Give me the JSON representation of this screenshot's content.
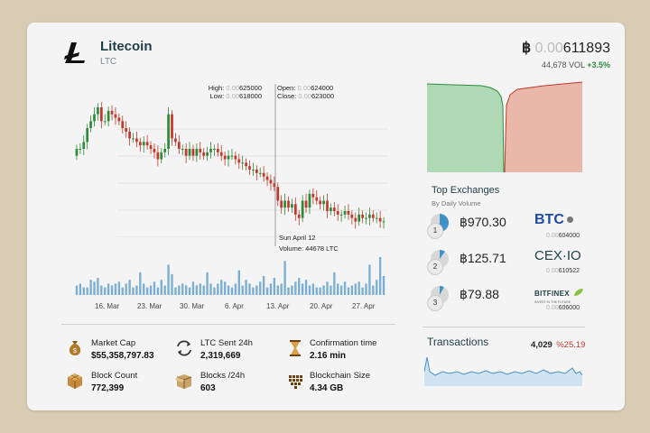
{
  "coin": {
    "name": "Litecoin",
    "symbol": "LTC"
  },
  "price": {
    "currency_symbol": "฿",
    "prefix": " 0.00",
    "value": "611893",
    "volume_label": "44,678 VOL",
    "change": "+3.5%"
  },
  "ohlc": {
    "high_label": "High:",
    "high_prefix": "0.00",
    "high_value": "625000",
    "low_label": "Low:",
    "low_prefix": "0.00",
    "low_value": "618000",
    "open_label": "Open:",
    "open_prefix": "0.00",
    "open_value": "624000",
    "close_label": "Close:",
    "close_prefix": "0.00",
    "close_value": "623000"
  },
  "hover": {
    "date": "Sun April 12",
    "volume": "Volume: 44678 LTC"
  },
  "chart_data": {
    "type": "candlestick",
    "x_labels": [
      "16. Mar",
      "23. Mar",
      "30. Mar",
      "6. Apr",
      "13. Apr",
      "20. Apr",
      "27. Apr"
    ],
    "closes": [
      0.63,
      0.63,
      0.632,
      0.636,
      0.638,
      0.64,
      0.642,
      0.638,
      0.638,
      0.641,
      0.64,
      0.639,
      0.638,
      0.636,
      0.635,
      0.633,
      0.633,
      0.632,
      0.631,
      0.632,
      0.631,
      0.63,
      0.629,
      0.627,
      0.629,
      0.63,
      0.64,
      0.633,
      0.632,
      0.63,
      0.63,
      0.628,
      0.63,
      0.628,
      0.63,
      0.629,
      0.628,
      0.629,
      0.63,
      0.63,
      0.629,
      0.628,
      0.627,
      0.628,
      0.628,
      0.627,
      0.626,
      0.626,
      0.625,
      0.624,
      0.624,
      0.623,
      0.623,
      0.622,
      0.621,
      0.62,
      0.619,
      0.615,
      0.613,
      0.615,
      0.613,
      0.614,
      0.611,
      0.61,
      0.615,
      0.613,
      0.617,
      0.616,
      0.615,
      0.614,
      0.615,
      0.612,
      0.613,
      0.612,
      0.611,
      0.611,
      0.612,
      0.611,
      0.61,
      0.609,
      0.611,
      0.61,
      0.61,
      0.611,
      0.61,
      0.61,
      0.609,
      0.609
    ],
    "volumes": [
      5,
      6,
      4,
      4,
      8,
      7,
      9,
      5,
      4,
      6,
      5,
      6,
      7,
      4,
      6,
      8,
      4,
      5,
      12,
      6,
      4,
      5,
      7,
      4,
      8,
      5,
      16,
      11,
      4,
      5,
      6,
      5,
      4,
      7,
      5,
      6,
      5,
      12,
      6,
      4,
      6,
      8,
      7,
      5,
      4,
      6,
      13,
      5,
      8,
      6,
      4,
      5,
      7,
      10,
      4,
      6,
      9,
      5,
      6,
      18,
      4,
      5,
      7,
      9,
      6,
      8,
      5,
      6,
      4,
      4,
      5,
      7,
      5,
      12,
      6,
      5,
      7,
      4,
      5,
      6,
      7,
      4,
      6,
      16,
      5,
      8,
      20,
      10
    ]
  },
  "stats": [
    {
      "label": "Market Cap",
      "value": "$55,358,797.83",
      "icon": "money-bag-icon"
    },
    {
      "label": "LTC Sent 24h",
      "value": "2,319,669",
      "icon": "exchange-arrows-icon"
    },
    {
      "label": "Confirmation time",
      "value": "2.16 min",
      "icon": "hourglass-icon"
    },
    {
      "label": "Block Count",
      "value": "772,399",
      "icon": "blocks-icon"
    },
    {
      "label": "Blocks /24h",
      "value": "603",
      "icon": "box-icon"
    },
    {
      "label": "Blockchain Size",
      "value": "4.34 GB",
      "icon": "heart-blocks-icon"
    }
  ],
  "exchanges": {
    "title": "Top Exchanges",
    "subtitle": "By Daily Volume",
    "items": [
      {
        "rank": "1",
        "value": "฿970.30",
        "logo": "BTC",
        "small_prefix": "0.00",
        "small_value": "604000",
        "share": 0.55
      },
      {
        "rank": "2",
        "value": "฿125.71",
        "logo": "CEX·IO",
        "small_prefix": "0.00",
        "small_value": "610522",
        "share": 0.1
      },
      {
        "rank": "3",
        "value": "฿79.88",
        "logo": "BITFINEX",
        "logo_sub": "INVEST IN THE FUTURE",
        "small_prefix": "0.00",
        "small_value": "606000",
        "share": 0.08
      }
    ]
  },
  "transactions": {
    "title": "Transactions",
    "count": "4,029",
    "change": "%25.19"
  },
  "colors": {
    "up": "#2f8b3b",
    "down": "#c0392b",
    "bar": "#7aaed4",
    "depth_bid": "#aed9b4",
    "depth_ask": "#e9b8aa",
    "accent": "#1f3d45"
  }
}
